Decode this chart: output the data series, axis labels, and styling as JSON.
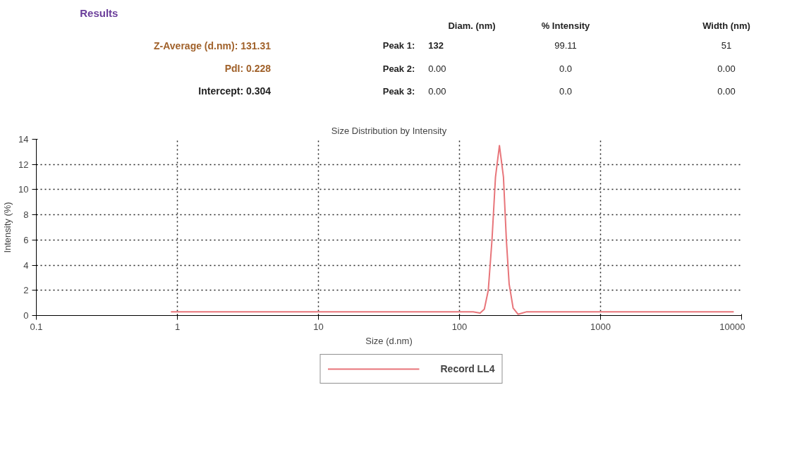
{
  "chart_data": {
    "type": "line",
    "title": "Size Distribution by Intensity",
    "xlabel": "Size (d.nm)",
    "ylabel": "Intensity (%)",
    "annotations": [
      "Results",
      "Diam. (nm)",
      "% Intensity",
      "Width (nm)",
      "Z-Average (d.nm): 131.31",
      "Peak 1:",
      "132",
      "99.11",
      "51",
      "PdI: 0.228",
      "Peak 2:",
      "0.00",
      "0.0",
      "0.00",
      "Intercept: 0.304",
      "Peak 3:",
      "0.00",
      "0.0",
      "0.00"
    ],
    "x": [
      0.9,
      1,
      10,
      100,
      125,
      140,
      150,
      160,
      170,
      180,
      192,
      205,
      215,
      225,
      240,
      260,
      300,
      1000,
      8800
    ],
    "series": [
      {
        "name": "Record LL4",
        "color": "#e8757a",
        "values": [
          0.3,
          0.3,
          0.3,
          0.3,
          0.3,
          0.2,
          0.5,
          2,
          6,
          11,
          13.5,
          11,
          6,
          2.5,
          0.6,
          0.1,
          0.3,
          0.3,
          0.3
        ]
      }
    ],
    "log": "x",
    "xlim": [
      0.1,
      10000
    ],
    "xticks": [
      0.1,
      1,
      10,
      100,
      1000,
      10000
    ],
    "ylim": [
      0,
      14
    ],
    "yticks": [
      0,
      2,
      4,
      6,
      8,
      10,
      12,
      14
    ],
    "grid": true,
    "line_style": "solid",
    "legend": "bottom"
  }
}
